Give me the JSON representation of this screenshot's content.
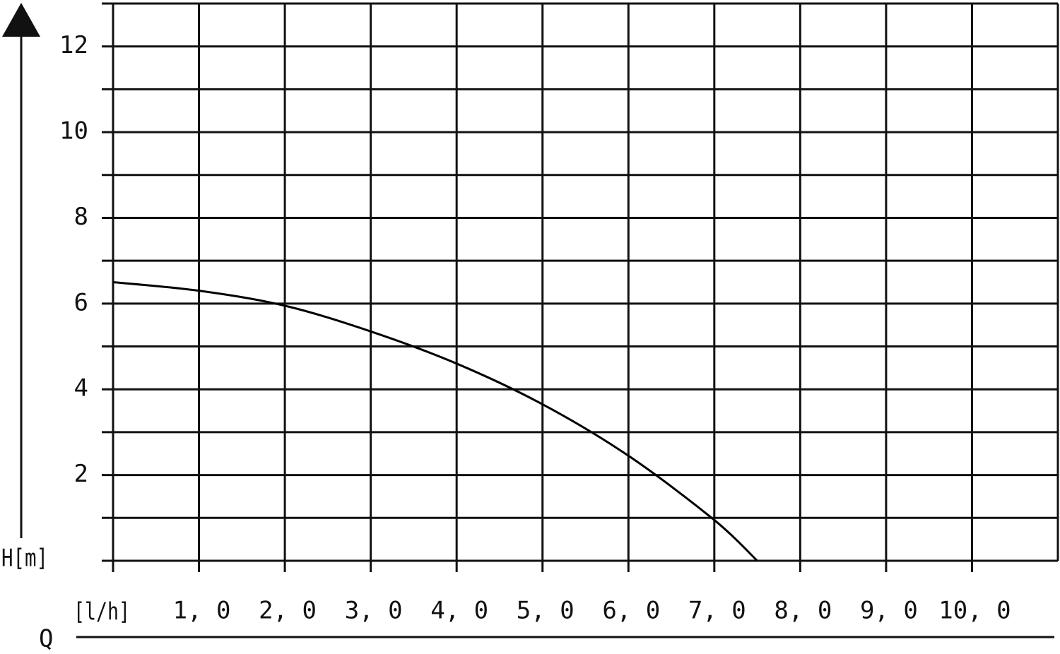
{
  "chart_data": {
    "type": "line",
    "x_label": "[l/h]",
    "y_label": "H[m]",
    "x_axis_name": "Q",
    "x": [
      0,
      1,
      2,
      3,
      4,
      5,
      6,
      7,
      7.5
    ],
    "series": [
      {
        "color": "#000000",
        "values": [
          6.5,
          6.3,
          5.95,
          5.35,
          4.6,
          3.65,
          2.45,
          0.95,
          0
        ]
      }
    ],
    "xlim": [
      0,
      11
    ],
    "ylim": [
      0,
      13
    ],
    "xticks": [
      {
        "value": 1,
        "label": "1, 0"
      },
      {
        "value": 2,
        "label": "2, 0"
      },
      {
        "value": 3,
        "label": "3, 0"
      },
      {
        "value": 4,
        "label": "4, 0"
      },
      {
        "value": 5,
        "label": "5, 0"
      },
      {
        "value": 6,
        "label": "6, 0"
      },
      {
        "value": 7,
        "label": "7, 0"
      },
      {
        "value": 8,
        "label": "8, 0"
      },
      {
        "value": 9,
        "label": "9, 0"
      },
      {
        "value": 10,
        "label": "10, 0"
      }
    ],
    "yticks": [
      2,
      4,
      6,
      8,
      10,
      12
    ],
    "y_minor_ticks": [
      1,
      3,
      5,
      7,
      9,
      11
    ],
    "grid": true
  }
}
